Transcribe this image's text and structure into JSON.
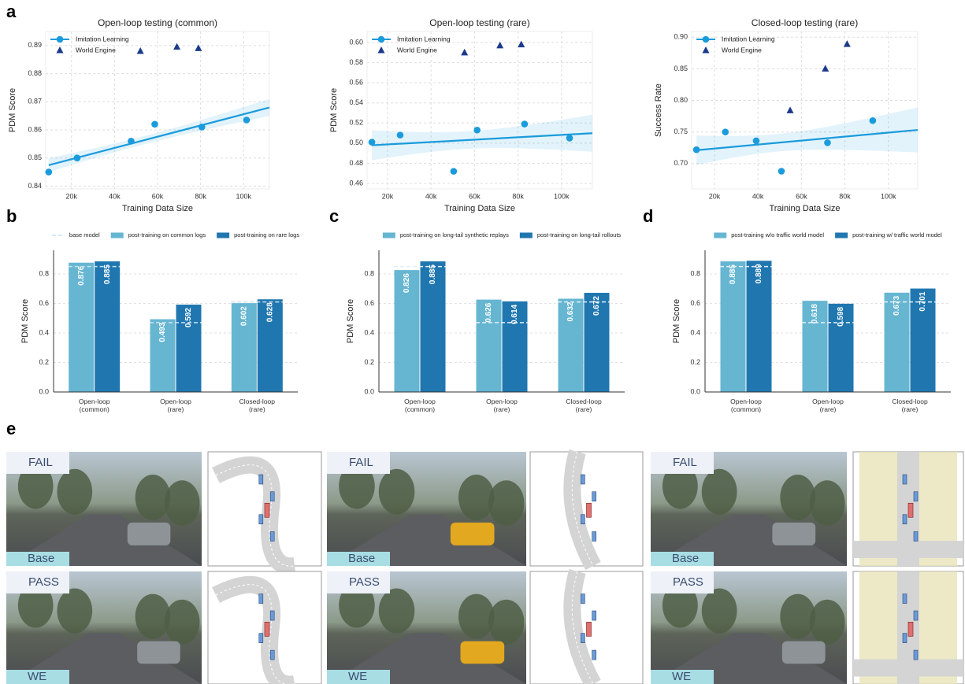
{
  "panels": [
    "a",
    "b",
    "c",
    "d",
    "e"
  ],
  "chart_data": [
    {
      "type": "scatter",
      "title": "Open-loop testing (common)",
      "x_label": "Training Data Size",
      "y_label": "PDM Score",
      "xlim": [
        8000,
        112000
      ],
      "ylim": [
        0.839,
        0.895
      ],
      "xticks": [
        {
          "value": 20000,
          "label": "20k"
        },
        {
          "value": 40000,
          "label": "40k"
        },
        {
          "value": 60000,
          "label": "60k"
        },
        {
          "value": 80000,
          "label": "80k"
        },
        {
          "value": 100000,
          "label": "100k"
        }
      ],
      "yticks": [
        0.84,
        0.85,
        0.86,
        0.87,
        0.88,
        0.89
      ],
      "grid": true,
      "legend": "upper left",
      "fit_line": true,
      "series": [
        {
          "name": "Imitation Learning",
          "color": "#1a9bdc",
          "marker": "circle",
          "x": [
            9400,
            22600,
            47700,
            58700,
            80600,
            101400
          ],
          "values": [
            0.845,
            0.85,
            0.856,
            0.862,
            0.861,
            0.8635
          ]
        },
        {
          "name": "World Engine",
          "color": "#1c3a8a",
          "marker": "triangle",
          "x": [
            52000,
            69000,
            79000
          ],
          "values": [
            0.888,
            0.8895,
            0.889
          ]
        }
      ]
    },
    {
      "type": "scatter",
      "title": "Open-loop testing (rare)",
      "x_label": "Training Data Size",
      "y_label": "PDM Score",
      "xlim": [
        10600,
        114200
      ],
      "ylim": [
        0.4545,
        0.611
      ],
      "xticks": [
        {
          "value": 20000,
          "label": "20k"
        },
        {
          "value": 40000,
          "label": "40k"
        },
        {
          "value": 60000,
          "label": "60k"
        },
        {
          "value": 80000,
          "label": "80k"
        },
        {
          "value": 100000,
          "label": "100k"
        }
      ],
      "yticks": [
        0.46,
        0.48,
        {
          "value": 0.5,
          "label": "0.50"
        },
        0.52,
        0.54,
        0.56,
        0.58,
        {
          "value": 0.6,
          "label": "0.60"
        }
      ],
      "grid": true,
      "legend": "upper left",
      "fit_line": true,
      "series": [
        {
          "name": "Imitation Learning",
          "color": "#1a9bdc",
          "marker": "circle",
          "x": [
            12800,
            25800,
            50400,
            61200,
            83000,
            103700
          ],
          "values": [
            0.501,
            0.508,
            0.472,
            0.513,
            0.519,
            0.505
          ]
        },
        {
          "name": "World Engine",
          "color": "#1c3a8a",
          "marker": "triangle",
          "x": [
            55400,
            71700,
            81500
          ],
          "values": [
            0.59,
            0.597,
            0.598
          ]
        }
      ]
    },
    {
      "type": "scatter",
      "title": "Closed-loop testing (rare)",
      "x_label": "Training Data Size",
      "y_label": "Success Rate",
      "xlim": [
        9500,
        113500
      ],
      "ylim": [
        0.66,
        0.909
      ],
      "xticks": [
        {
          "value": 20000,
          "label": "20k"
        },
        {
          "value": 40000,
          "label": "40k"
        },
        {
          "value": 60000,
          "label": "60k"
        },
        {
          "value": 80000,
          "label": "80k"
        },
        {
          "value": 100000,
          "label": "100k"
        }
      ],
      "yticks": [
        {
          "value": 0.7,
          "label": "0.70"
        },
        0.75,
        {
          "value": 0.8,
          "label": "0.80"
        },
        0.85,
        {
          "value": 0.9,
          "label": "0.90"
        }
      ],
      "grid": true,
      "legend": "upper left",
      "fit_line": true,
      "series": [
        {
          "name": "Imitation Learning",
          "color": "#1a9bdc",
          "marker": "circle",
          "x": [
            11700,
            25000,
            39200,
            50800,
            72000,
            92800
          ],
          "values": [
            0.722,
            0.75,
            0.736,
            0.688,
            0.733,
            0.768
          ]
        },
        {
          "name": "World Engine",
          "color": "#1c3a8a",
          "marker": "triangle",
          "x": [
            54800,
            71000,
            81000
          ],
          "values": [
            0.784,
            0.85,
            0.889
          ]
        }
      ]
    },
    {
      "type": "grouped_bar",
      "y_label": "PDM Score",
      "categories": [
        "Open-loop\n(common)",
        "Open-loop\n(rare)",
        "Closed-loop\n(rare)"
      ],
      "ylim": [
        0,
        0.96
      ],
      "yticks": [
        {
          "value": 0,
          "label": "0.0"
        },
        0.2,
        0.4,
        0.6,
        0.8
      ],
      "grid": true,
      "legend": "upper center",
      "baseline": {
        "name": "base model",
        "color": "#c9e0f0",
        "values": [
          0.85,
          0.47,
          0.61
        ]
      },
      "series": [
        {
          "name": "post-training on common logs",
          "color": "#66b6d2",
          "values": [
            0.876,
            0.493,
            0.602
          ]
        },
        {
          "name": "post-training on rare logs",
          "color": "#2077b0",
          "values": [
            0.885,
            0.592,
            0.628
          ]
        }
      ]
    },
    {
      "type": "grouped_bar",
      "y_label": "PDM Score",
      "categories": [
        "Open-loop\n(common)",
        "Open-loop\n(rare)",
        "Closed-loop\n(rare)"
      ],
      "ylim": [
        0,
        0.96
      ],
      "yticks": [
        {
          "value": 0,
          "label": "0.0"
        },
        0.2,
        0.4,
        0.6,
        0.8
      ],
      "grid": true,
      "legend": "upper center",
      "baseline": {
        "color": "#e4f0f8",
        "values": [
          0.85,
          0.47,
          0.61
        ]
      },
      "series": [
        {
          "name": "post-training on long-tail synthetic replays",
          "color": "#66b6d2",
          "values": [
            0.826,
            0.626,
            0.632
          ]
        },
        {
          "name": "post-training on long-tail rollouts",
          "color": "#2077b0",
          "values": [
            0.885,
            0.614,
            0.672
          ]
        }
      ]
    },
    {
      "type": "grouped_bar",
      "y_label": "PDM Score",
      "categories": [
        "Open-loop\n(common)",
        "Open-loop\n(rare)",
        "Closed-loop\n(rare)"
      ],
      "ylim": [
        0,
        0.96
      ],
      "yticks": [
        {
          "value": 0,
          "label": "0.0"
        },
        0.2,
        0.4,
        0.6,
        0.8
      ],
      "grid": true,
      "legend": "upper center",
      "baseline": {
        "color": "#e4f0f8",
        "values": [
          0.85,
          0.47,
          0.61
        ]
      },
      "series": [
        {
          "name": "post-training w/o traffic world model",
          "color": "#66b6d2",
          "values": [
            0.885,
            0.618,
            0.673
          ]
        },
        {
          "name": "post-training w/ traffic world model",
          "color": "#2077b0",
          "values": [
            0.889,
            0.598,
            0.701
          ]
        }
      ]
    }
  ],
  "examples": [
    {
      "rows": [
        {
          "status": "FAIL",
          "model": "Base"
        },
        {
          "status": "PASS",
          "model": "WE"
        }
      ]
    },
    {
      "rows": [
        {
          "status": "FAIL",
          "model": "Base"
        },
        {
          "status": "PASS",
          "model": "WE"
        }
      ]
    },
    {
      "rows": [
        {
          "status": "FAIL",
          "model": "Base"
        },
        {
          "status": "PASS",
          "model": "WE"
        }
      ]
    }
  ]
}
